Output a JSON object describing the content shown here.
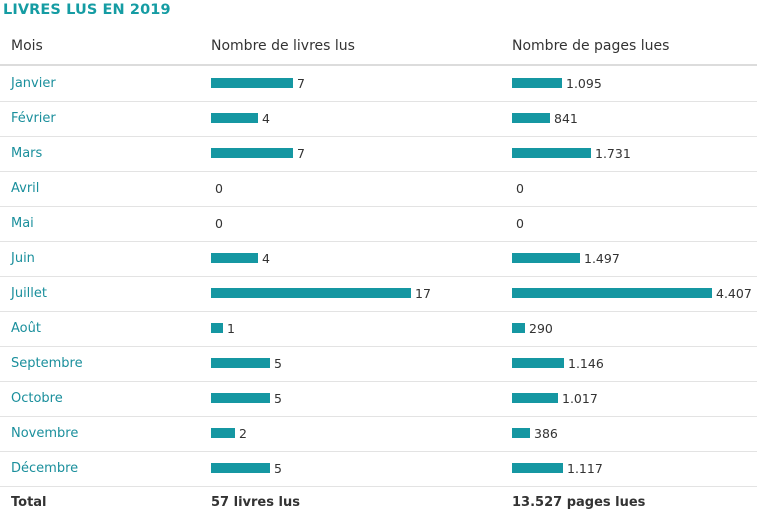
{
  "title": "LIVRES LUS EN 2019",
  "headers": {
    "month": "Mois",
    "books": "Nombre de livres lus",
    "pages": "Nombre de pages lues"
  },
  "colors": {
    "bar": "#1597a2",
    "title": "#159ca3",
    "month_link": "#1a8f9c"
  },
  "rows": [
    {
      "month": "Janvier",
      "books_label": "7",
      "pages_label": "1.095"
    },
    {
      "month": "Février",
      "books_label": "4",
      "pages_label": "841"
    },
    {
      "month": "Mars",
      "books_label": "7",
      "pages_label": "1.731"
    },
    {
      "month": "Avril",
      "books_label": "0",
      "pages_label": "0"
    },
    {
      "month": "Mai",
      "books_label": "0",
      "pages_label": "0"
    },
    {
      "month": "Juin",
      "books_label": "4",
      "pages_label": "1.497"
    },
    {
      "month": "Juillet",
      "books_label": "17",
      "pages_label": "4.407"
    },
    {
      "month": "Août",
      "books_label": "1",
      "pages_label": "290"
    },
    {
      "month": "Septembre",
      "books_label": "5",
      "pages_label": "1.146"
    },
    {
      "month": "Octobre",
      "books_label": "5",
      "pages_label": "1.017"
    },
    {
      "month": "Novembre",
      "books_label": "2",
      "pages_label": "386"
    },
    {
      "month": "Décembre",
      "books_label": "5",
      "pages_label": "1.117"
    }
  ],
  "total": {
    "label": "Total",
    "books": "57 livres lus",
    "pages": "13.527 pages lues"
  },
  "chart_data": {
    "type": "table",
    "title": "LIVRES LUS EN 2019",
    "categories": [
      "Janvier",
      "Février",
      "Mars",
      "Avril",
      "Mai",
      "Juin",
      "Juillet",
      "Août",
      "Septembre",
      "Octobre",
      "Novembre",
      "Décembre"
    ],
    "series": [
      {
        "name": "Nombre de livres lus",
        "values": [
          7,
          4,
          7,
          0,
          0,
          4,
          17,
          1,
          5,
          5,
          2,
          5
        ]
      },
      {
        "name": "Nombre de pages lues",
        "values": [
          1095,
          841,
          1731,
          0,
          0,
          1497,
          4407,
          290,
          1146,
          1017,
          386,
          1117
        ]
      }
    ]
  }
}
